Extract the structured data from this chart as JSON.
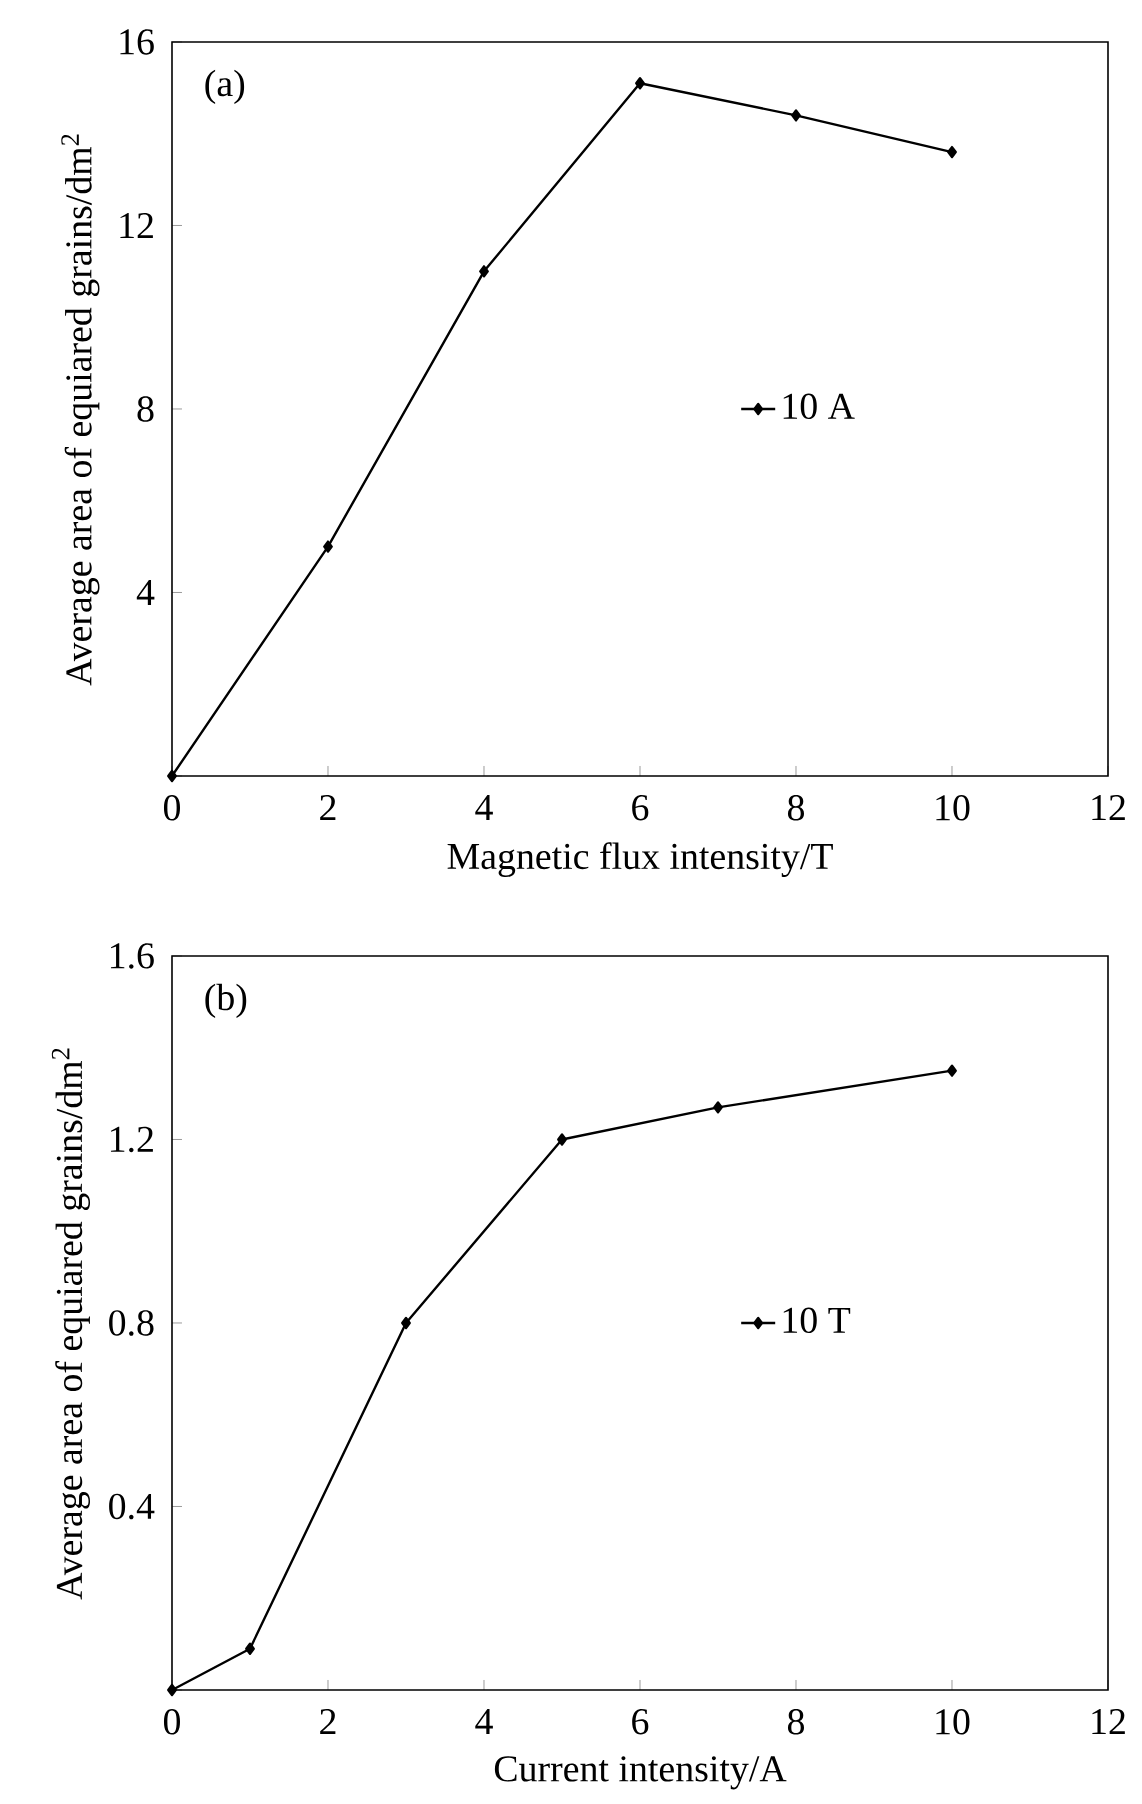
{
  "chart_data": [
    {
      "type": "line",
      "xlabel": "Magnetic flux intensity/T",
      "ylabel": "Average area of equiared grains/dm$^{2}$",
      "annotations": [
        "(a)"
      ],
      "x": [
        0,
        2,
        4,
        6,
        8,
        10
      ],
      "series": [
        {
          "name": "10 A",
          "color": "#000000",
          "values": [
            0,
            5.0,
            11.0,
            15.1,
            14.4,
            13.6
          ]
        }
      ],
      "xlim": [
        0,
        12
      ],
      "ylim": [
        0,
        16
      ],
      "xticks": [
        0,
        2,
        4,
        6,
        8,
        10,
        12
      ],
      "yticks": [
        {
          "value": 0,
          "label": null
        },
        4,
        8,
        12,
        16
      ],
      "marker": "diamond",
      "line_style": "solid",
      "legend": "right"
    },
    {
      "type": "line",
      "xlabel": "Current intensity/A",
      "ylabel": "Average area of equiared grains/dm$^{2}$",
      "annotations": [
        "(b)"
      ],
      "x": [
        0,
        1,
        3,
        5,
        7,
        10
      ],
      "series": [
        {
          "name": "10 T",
          "color": "#000000",
          "values": [
            0,
            0.09,
            0.8,
            1.2,
            1.27,
            1.35
          ]
        }
      ],
      "xlim": [
        0,
        12
      ],
      "ylim": [
        0,
        1.6
      ],
      "xticks": [
        0,
        2,
        4,
        6,
        8,
        10,
        12
      ],
      "yticks": [
        {
          "value": 0,
          "label": null
        },
        0.4,
        0.8,
        1.2,
        1.6
      ],
      "marker": "diamond",
      "line_style": "solid",
      "legend": "right"
    }
  ]
}
